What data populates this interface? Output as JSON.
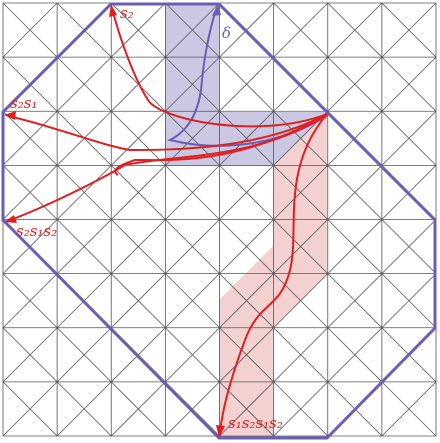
{
  "labels": {
    "delta": "δ",
    "s2": "s₂",
    "s2s1": "s₂s₁",
    "s2s1s2": "s₂s₁s₂",
    "s1s2s1s2": "s₁s₂s₁s₂"
  }
}
